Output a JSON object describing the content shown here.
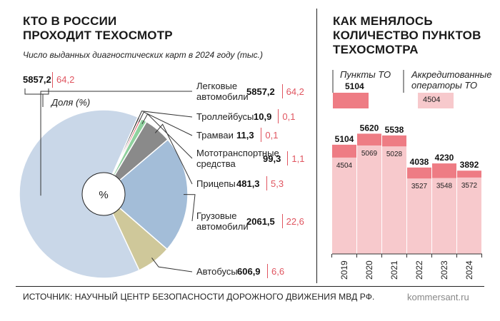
{
  "left": {
    "title_line1": "КТО В РОССИИ",
    "title_line2": "ПРОХОДИТ ТЕХОСМОТР",
    "subtitle": "Число выданных диагностических карт в 2024 году (тыс.)",
    "key_value": "5857,2",
    "key_pct": "64,2",
    "key_pct_label": "Доля (%)",
    "center_label": "%"
  },
  "right": {
    "title_line1": "КАК МЕНЯЛОСЬ",
    "title_line2": "КОЛИЧЕСТВО ПУНКТОВ",
    "title_line3": "ТЕХОСМОТРА",
    "legend_total_label": "Пункты ТО",
    "legend_total_value": "5104",
    "legend_acc_label_line1": "Аккредитованные",
    "legend_acc_label_line2": "операторы ТО",
    "legend_acc_value": "4504"
  },
  "footer": {
    "source": "ИСТОЧНИК: НАУЧНЫЙ ЦЕНТР БЕЗОПАСНОСТИ ДОРОЖНОГО ДВИЖЕНИЯ МВД РФ.",
    "site": "kommersant.ru"
  },
  "colors": {
    "pie_light_blue": "#c9d7e8",
    "pie_blue": "#a3bdd8",
    "pie_olive": "#cfc89a",
    "pie_gray": "#8a8a8a",
    "pie_pink": "#f0a6a8",
    "pie_green": "#8fd19e",
    "pie_red": "#e05560",
    "pie_black": "#1a1a1a",
    "bar_total": "#ee7c84",
    "bar_acc": "#f7c9cc",
    "accent_red": "#e05560"
  },
  "chart_data": [
    {
      "type": "pie",
      "title": "КТО В РОССИИ ПРОХОДИТ ТЕХОСМОТР",
      "subtitle": "Число выданных диагностических карт в 2024 году (тыс.)",
      "slices": [
        {
          "label": "Легковые автомобили",
          "label_line1": "Легковые",
          "label_line2": "автомобили",
          "value": 5857.2,
          "value_text": "5857,2",
          "percent": 64.2,
          "percent_text": "64,2",
          "color": "#c9d7e8"
        },
        {
          "label": "Троллейбусы",
          "label_line1": "Троллейбусы",
          "label_line2": "",
          "value": 10.9,
          "value_text": "10,9",
          "percent": 0.1,
          "percent_text": "0,1",
          "color": "#1a1a1a"
        },
        {
          "label": "Трамваи",
          "label_line1": "Трамваи",
          "label_line2": "",
          "value": 11.3,
          "value_text": "11,3",
          "percent": 0.1,
          "percent_text": "0,1",
          "color": "#e05560"
        },
        {
          "label": "Мототранспортные средства",
          "label_line1": "Мототранспортные",
          "label_line2": "средства",
          "value": 99.3,
          "value_text": "99,3",
          "percent": 1.1,
          "percent_text": "1,1",
          "color": "#8fd19e"
        },
        {
          "label": "Прицепы",
          "label_line1": "Прицепы",
          "label_line2": "",
          "value": 481.3,
          "value_text": "481,3",
          "percent": 5.3,
          "percent_text": "5,3",
          "color": "#8a8a8a"
        },
        {
          "label": "Грузовые автомобили",
          "label_line1": "Грузовые",
          "label_line2": "автомобили",
          "value": 2061.5,
          "value_text": "2061,5",
          "percent": 22.6,
          "percent_text": "22,6",
          "color": "#a3bdd8"
        },
        {
          "label": "Автобусы",
          "label_line1": "Автобусы",
          "label_line2": "",
          "value": 606.9,
          "value_text": "606,9",
          "percent": 6.6,
          "percent_text": "6,6",
          "color": "#cfc89a"
        }
      ]
    },
    {
      "type": "bar",
      "title": "КАК МЕНЯЛОСЬ КОЛИЧЕСТВО ПУНКТОВ ТЕХОСМОТРА",
      "categories": [
        "2019",
        "2020",
        "2021",
        "2022",
        "2023",
        "2024"
      ],
      "series": [
        {
          "name": "Пункты ТО",
          "values": [
            5104,
            5620,
            5538,
            4038,
            4230,
            3892
          ]
        },
        {
          "name": "Аккредитованные операторы ТО",
          "values": [
            4504,
            5069,
            5028,
            3527,
            3548,
            3572
          ]
        }
      ]
    }
  ]
}
